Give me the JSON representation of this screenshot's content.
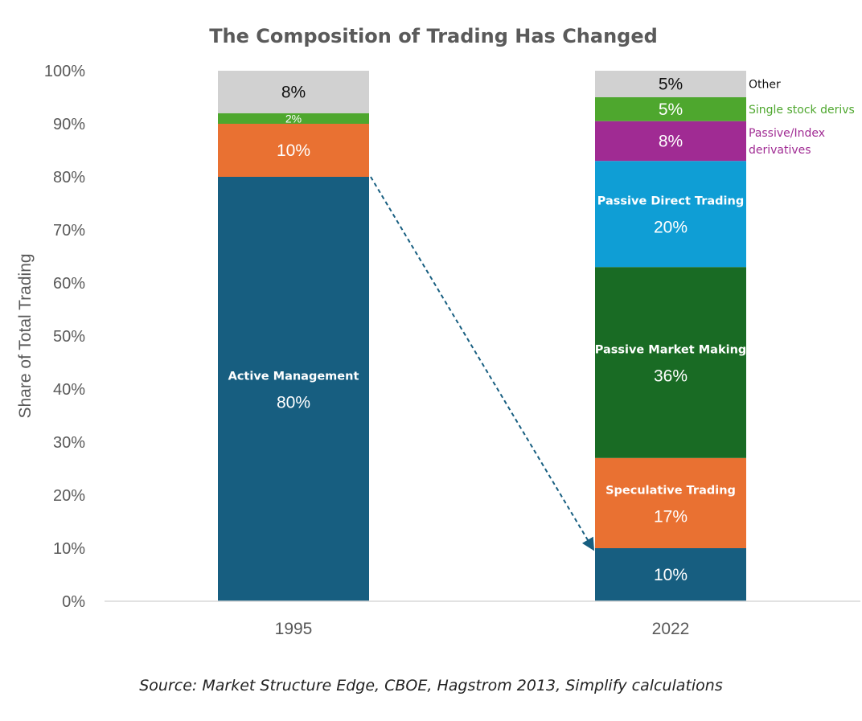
{
  "chart_data": {
    "type": "bar",
    "stacked": true,
    "title": "The Composition of Trading Has Changed",
    "ylabel": "Share of Total Trading",
    "xlabel": "",
    "ylim": [
      0,
      100
    ],
    "ytick_labels": [
      "0%",
      "10%",
      "20%",
      "30%",
      "40%",
      "50%",
      "60%",
      "70%",
      "80%",
      "90%",
      "100%"
    ],
    "categories": [
      "1995",
      "2022"
    ],
    "bars": [
      {
        "category": "1995",
        "segments": [
          {
            "name": "Active Management",
            "value": 80,
            "label": "80%",
            "color": "#175e80",
            "text_color": "#ffffff",
            "name_shown": true
          },
          {
            "name": "Speculative Trading",
            "value": 10,
            "label": "10%",
            "color": "#e97132",
            "text_color": "#ffffff",
            "name_shown": false
          },
          {
            "name": "Single stock derivs",
            "value": 2,
            "label": "2%",
            "color": "#4ea72e",
            "text_color": "#ffffff",
            "name_shown": false
          },
          {
            "name": "Other",
            "value": 8,
            "label": "8%",
            "color": "#d1d1d1",
            "text_color": "#111111",
            "name_shown": false
          }
        ]
      },
      {
        "category": "2022",
        "segments": [
          {
            "name": "Active Management",
            "value": 10,
            "label": "10%",
            "color": "#175e80",
            "text_color": "#ffffff",
            "name_shown": false
          },
          {
            "name": "Speculative Trading",
            "value": 17,
            "label": "17%",
            "color": "#e97132",
            "text_color": "#ffffff",
            "name_shown": true
          },
          {
            "name": "Passive Market Making",
            "value": 36,
            "label": "36%",
            "color": "#196b24",
            "text_color": "#ffffff",
            "name_shown": true
          },
          {
            "name": "Passive Direct Trading",
            "value": 20,
            "label": "20%",
            "color": "#0f9ed5",
            "text_color": "#ffffff",
            "name_shown": true
          },
          {
            "name": "Passive/Index derivatives",
            "value": 7.5,
            "label": "8%",
            "color": "#a02b93",
            "text_color": "#ffffff",
            "name_shown": false
          },
          {
            "name": "Single stock derivs",
            "value": 4.5,
            "label": "5%",
            "color": "#4ea72e",
            "text_color": "#ffffff",
            "name_shown": false
          },
          {
            "name": "Other",
            "value": 5,
            "label": "5%",
            "color": "#d1d1d1",
            "text_color": "#111111",
            "name_shown": false
          }
        ]
      }
    ],
    "annotations": [
      {
        "type": "dashed-arrow",
        "from": {
          "category": "1995",
          "value": 80
        },
        "to": {
          "category": "2022",
          "value": 10
        },
        "color": "#175e80"
      }
    ],
    "legend": [
      {
        "label": "Other",
        "color": "#111111",
        "attach_to": "Other"
      },
      {
        "label": "Single stock derivs",
        "color": "#4ea72e",
        "attach_to": "Single stock derivs"
      },
      {
        "label": "Passive/Index derivatives",
        "color": "#a02b93",
        "attach_to": "Passive/Index derivatives"
      }
    ],
    "source": "Source: Market Structure Edge, CBOE, Hagstrom 2013, Simplify calculations"
  }
}
